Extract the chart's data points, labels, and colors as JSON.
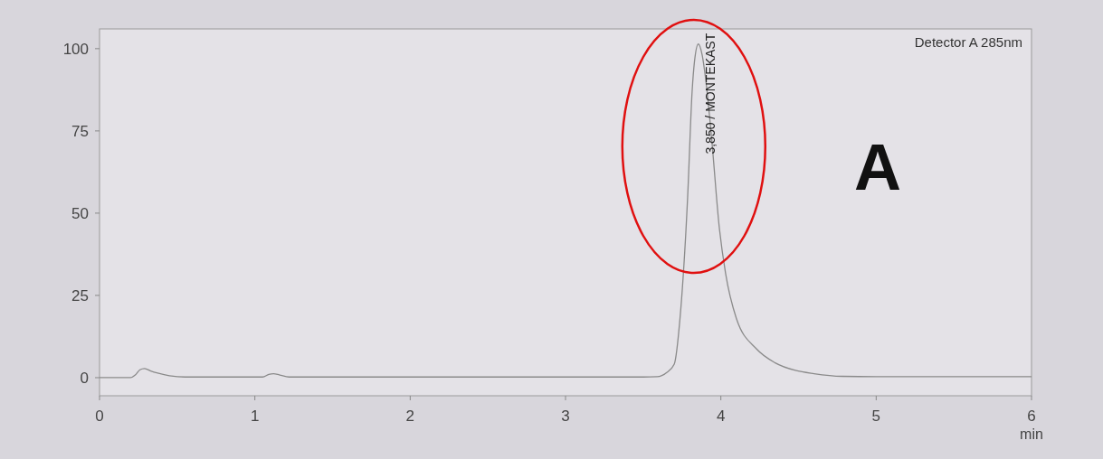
{
  "chart_data": {
    "type": "line",
    "xlabel": "min",
    "x": [
      0,
      0.2,
      0.23,
      0.26,
      0.29,
      0.33,
      0.38,
      0.45,
      0.55,
      1.05,
      1.09,
      1.12,
      1.16,
      1.22,
      2.0,
      3.5,
      3.59,
      3.65,
      3.7,
      3.737,
      3.786,
      3.815,
      3.83,
      3.855,
      3.88,
      3.9,
      3.94,
      3.99,
      4.03,
      4.1,
      4.23,
      4.35,
      4.48,
      4.6,
      4.78,
      5.0,
      6.0
    ],
    "series": [
      {
        "color": "#8a8a8a",
        "values": [
          0,
          0,
          0.8,
          2.4,
          2.8,
          2.0,
          1.3,
          0.6,
          0.2,
          0.2,
          1.0,
          1.2,
          0.8,
          0.2,
          0.2,
          0.2,
          0.3,
          1.5,
          4.1,
          18,
          54.7,
          87,
          96,
          101.4,
          98,
          91.6,
          73,
          45.6,
          31.8,
          18,
          8.7,
          4.5,
          2.2,
          1.2,
          0.4,
          0.3,
          0.3
        ]
      }
    ],
    "xlim": [
      0,
      6
    ],
    "ylim": [
      -5.5,
      106
    ],
    "xticks": [
      0,
      1,
      2,
      3,
      4,
      5,
      6
    ],
    "yticks": [
      0,
      25,
      50,
      75,
      100
    ],
    "grid": false,
    "annotations": [
      "Detector A 285nm",
      {
        "text": "3,850 / MONTEKAST",
        "x": 3.855,
        "y": 101.4
      },
      "A"
    ]
  }
}
